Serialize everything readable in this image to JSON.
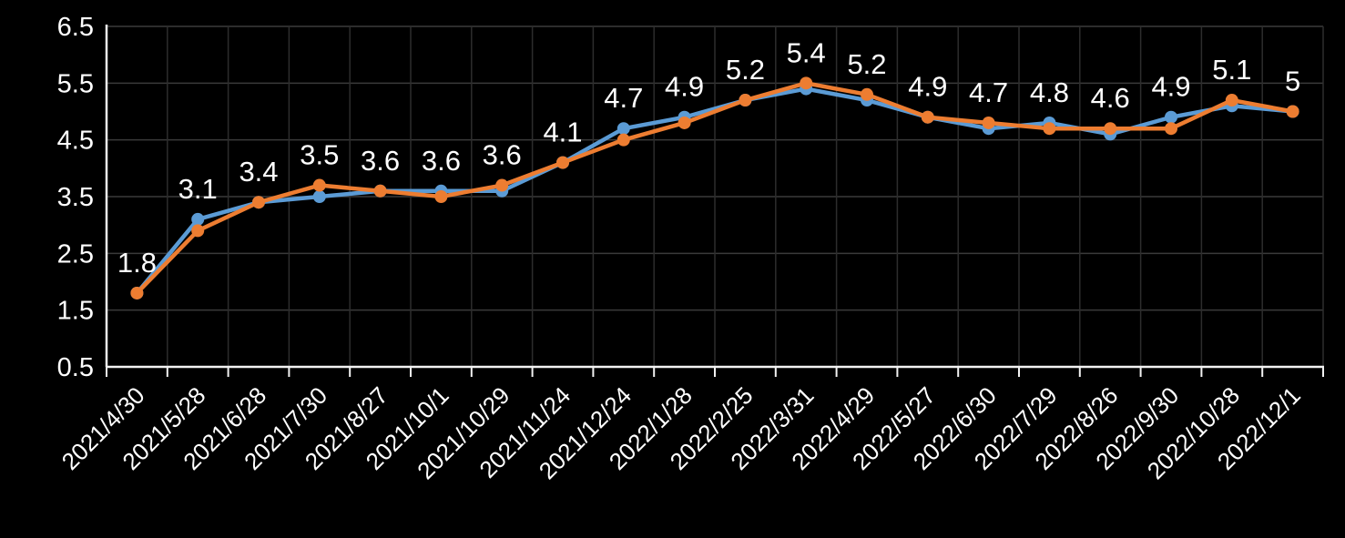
{
  "chart_data": {
    "type": "line",
    "title": "",
    "xlabel": "",
    "ylabel": "",
    "categories": [
      "2021/4/30",
      "2021/5/28",
      "2021/6/28",
      "2021/7/30",
      "2021/8/27",
      "2021/10/1",
      "2021/10/29",
      "2021/11/24",
      "2021/12/24",
      "2022/1/28",
      "2022/2/25",
      "2022/3/31",
      "2022/4/29",
      "2022/5/27",
      "2022/6/30",
      "2022/7/29",
      "2022/8/26",
      "2022/9/30",
      "2022/10/28",
      "2022/12/1"
    ],
    "series": [
      {
        "name": "series-blue",
        "color": "#5B9BD5",
        "values": [
          1.8,
          3.1,
          3.4,
          3.5,
          3.6,
          3.6,
          3.6,
          4.1,
          4.7,
          4.9,
          5.2,
          5.4,
          5.2,
          4.9,
          4.7,
          4.8,
          4.6,
          4.9,
          5.1,
          5.0
        ],
        "has_data_labels": true
      },
      {
        "name": "series-orange",
        "color": "#ED7D31",
        "values": [
          1.8,
          2.9,
          3.4,
          3.7,
          3.6,
          3.5,
          3.7,
          4.1,
          4.5,
          4.8,
          5.2,
          5.5,
          5.3,
          4.9,
          4.8,
          4.7,
          4.7,
          4.7,
          5.2,
          5.0
        ],
        "has_data_labels": false
      }
    ],
    "data_labels": [
      "1.8",
      "3.1",
      "3.4",
      "3.5",
      "3.6",
      "3.6",
      "3.6",
      "4.1",
      "4.7",
      "4.9",
      "5.2",
      "5.4",
      "5.2",
      "4.9",
      "4.7",
      "4.8",
      "4.6",
      "4.9",
      "5.1",
      "5"
    ],
    "yticks": [
      "6.5",
      "5.5",
      "4.5",
      "3.5",
      "2.5",
      "1.5",
      "0.5"
    ],
    "ylim": [
      0.5,
      6.5
    ],
    "ytick_step": 1.0,
    "grid": "both",
    "legend": "none",
    "x_label_rotation_deg": 45,
    "theme": {
      "background_color": "#000000",
      "axis_color": "#f2f2f2",
      "h_gridline_color": "#3a3a3a",
      "v_gridline_color": "#2d2d2d",
      "text_color": "#ffffff"
    }
  }
}
